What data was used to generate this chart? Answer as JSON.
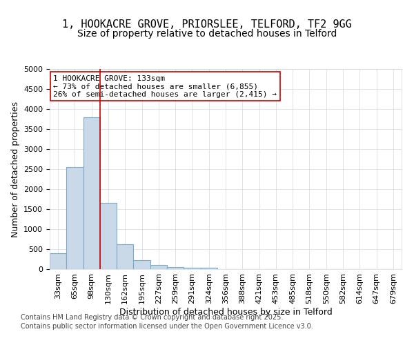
{
  "title_line1": "1, HOOKACRE GROVE, PRIORSLEE, TELFORD, TF2 9GG",
  "title_line2": "Size of property relative to detached houses in Telford",
  "categories": [
    "33sqm",
    "65sqm",
    "98sqm",
    "130sqm",
    "162sqm",
    "195sqm",
    "227sqm",
    "259sqm",
    "291sqm",
    "324sqm",
    "356sqm",
    "388sqm",
    "421sqm",
    "453sqm",
    "485sqm",
    "518sqm",
    "550sqm",
    "582sqm",
    "614sqm",
    "647sqm",
    "679sqm"
  ],
  "bar_values": [
    400,
    2550,
    3800,
    1650,
    620,
    230,
    100,
    50,
    40,
    35,
    0,
    0,
    0,
    0,
    0,
    0,
    0,
    0,
    0,
    0,
    0
  ],
  "bar_color": "#c9d9e8",
  "bar_edgecolor": "#7aaac8",
  "bar_linewidth": 0.8,
  "vline_x": 3,
  "vline_color": "#cc0000",
  "vline_linewidth": 1.2,
  "ylabel": "Number of detached properties",
  "xlabel": "Distribution of detached houses by size in Telford",
  "ylim": [
    0,
    5000
  ],
  "yticks": [
    0,
    500,
    1000,
    1500,
    2000,
    2500,
    3000,
    3500,
    4000,
    4500,
    5000
  ],
  "annotation_title": "1 HOOKACRE GROVE: 133sqm",
  "annotation_line1": "← 73% of detached houses are smaller (6,855)",
  "annotation_line2": "26% of semi-detached houses are larger (2,415) →",
  "annotation_box_color": "#ffffff",
  "annotation_box_edgecolor": "#cc0000",
  "footer_line1": "Contains HM Land Registry data © Crown copyright and database right 2025.",
  "footer_line2": "Contains public sector information licensed under the Open Government Licence v3.0.",
  "background_color": "#ffffff",
  "grid_color": "#d0d8e0",
  "title_fontsize": 11,
  "subtitle_fontsize": 10,
  "axis_fontsize": 9,
  "tick_fontsize": 8,
  "annotation_fontsize": 8,
  "footer_fontsize": 7
}
